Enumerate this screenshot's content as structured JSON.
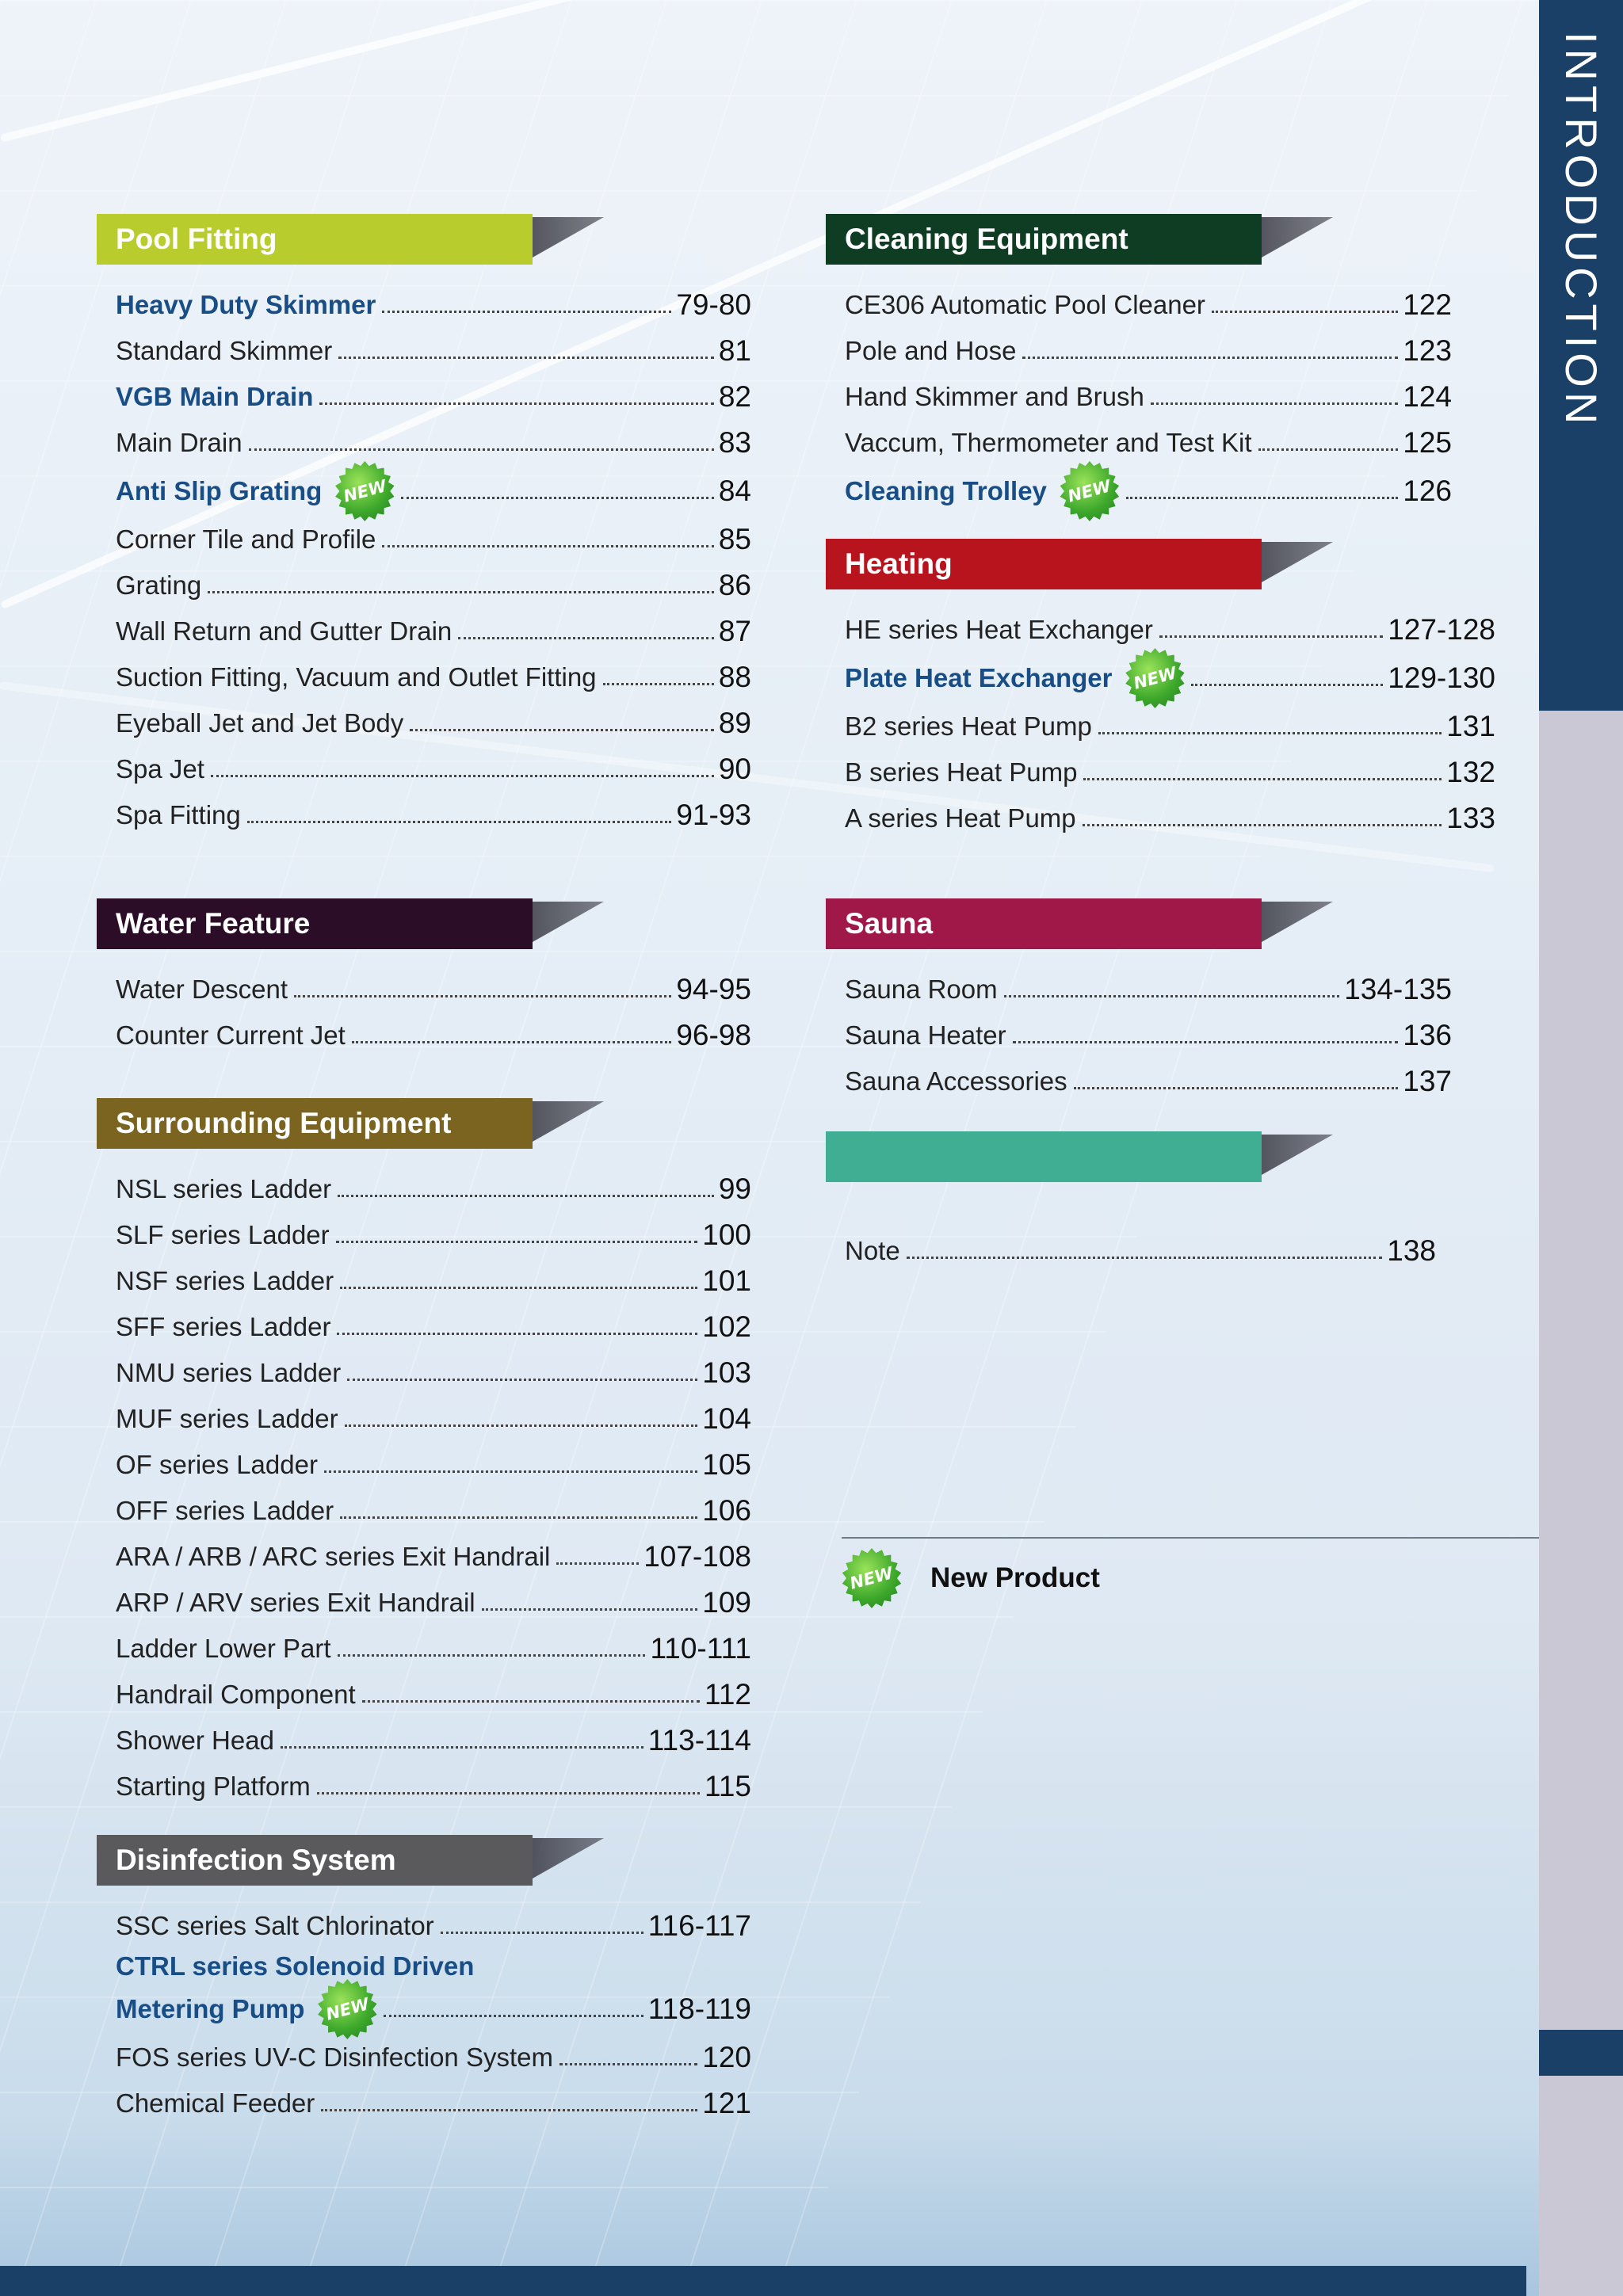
{
  "side_title": "INTRODUCTION",
  "badge_text": "NEW",
  "legend_label": "New Product",
  "sections": {
    "pool_fitting": {
      "title": "Pool Fitting",
      "color": "#b8cc2e",
      "items": [
        {
          "label": "Heavy Duty Skimmer",
          "page": "79-80",
          "highlight": true
        },
        {
          "label": "Standard Skimmer",
          "page": "81"
        },
        {
          "label": "VGB Main Drain",
          "page": "82",
          "highlight": true
        },
        {
          "label": "Main Drain",
          "page": "83"
        },
        {
          "label": "Anti Slip Grating",
          "page": "84",
          "highlight": true,
          "new": true
        },
        {
          "label": "Corner Tile and Profile",
          "page": "85"
        },
        {
          "label": "Grating",
          "page": "86"
        },
        {
          "label": "Wall Return and Gutter Drain",
          "page": "87"
        },
        {
          "label": "Suction Fitting, Vacuum and Outlet Fitting",
          "page": "88"
        },
        {
          "label": "Eyeball Jet and Jet Body",
          "page": "89"
        },
        {
          "label": "Spa Jet",
          "page": "90"
        },
        {
          "label": "Spa Fitting",
          "page": "91-93"
        }
      ]
    },
    "water_feature": {
      "title": "Water Feature",
      "color": "#2b0d28",
      "items": [
        {
          "label": "Water Descent",
          "page": "94-95"
        },
        {
          "label": "Counter Current Jet",
          "page": "96-98"
        }
      ]
    },
    "surrounding_equipment": {
      "title": "Surrounding Equipment",
      "color": "#7a6420",
      "items": [
        {
          "label": "NSL series Ladder",
          "page": "99"
        },
        {
          "label": "SLF series Ladder",
          "page": "100"
        },
        {
          "label": "NSF series Ladder",
          "page": "101"
        },
        {
          "label": "SFF series Ladder",
          "page": "102"
        },
        {
          "label": "NMU series Ladder",
          "page": "103"
        },
        {
          "label": "MUF series Ladder",
          "page": "104"
        },
        {
          "label": "OF series Ladder",
          "page": "105"
        },
        {
          "label": "OFF series Ladder",
          "page": "106"
        },
        {
          "label": "ARA / ARB / ARC series Exit Handrail",
          "page": "107-108"
        },
        {
          "label": "ARP / ARV series Exit Handrail",
          "page": "109"
        },
        {
          "label": "Ladder Lower Part",
          "page": "110-111"
        },
        {
          "label": "Handrail Component",
          "page": "112"
        },
        {
          "label": "Shower Head",
          "page": "113-114"
        },
        {
          "label": "Starting Platform",
          "page": "115"
        }
      ]
    },
    "disinfection_system": {
      "title": "Disinfection System",
      "color": "#5a5a5c",
      "items": [
        {
          "label": "SSC series Salt Chlorinator",
          "page": "116-117"
        },
        {
          "label": "CTRL series Solenoid Driven",
          "page": "",
          "highlight": true,
          "noleader": true
        },
        {
          "label": "Metering Pump",
          "page": "118-119",
          "highlight": true,
          "new": true
        },
        {
          "label": "FOS series UV-C Disinfection System",
          "page": "120"
        },
        {
          "label": "Chemical Feeder",
          "page": "121"
        }
      ]
    },
    "cleaning_equipment": {
      "title": "Cleaning Equipment",
      "color": "#0f3d23",
      "items": [
        {
          "label": "CE306 Automatic Pool Cleaner",
          "page": "122"
        },
        {
          "label": "Pole and Hose",
          "page": "123"
        },
        {
          "label": "Hand Skimmer and Brush",
          "page": "124"
        },
        {
          "label": "Vaccum, Thermometer and Test Kit",
          "page": "125"
        },
        {
          "label": "Cleaning Trolley",
          "page": "126",
          "highlight": true,
          "new": true
        }
      ]
    },
    "heating": {
      "title": "Heating",
      "color": "#b8141d",
      "items": [
        {
          "label": "HE series Heat Exchanger",
          "page": "127-128"
        },
        {
          "label": "Plate Heat Exchanger",
          "page": "129-130",
          "highlight": true,
          "new": true
        },
        {
          "label": "B2 series Heat Pump",
          "page": "131"
        },
        {
          "label": "B series Heat Pump",
          "page": "132"
        },
        {
          "label": "A series Heat Pump",
          "page": "133"
        }
      ]
    },
    "sauna": {
      "title": "Sauna",
      "color": "#a01848",
      "items": [
        {
          "label": "Sauna Room",
          "page": "134-135"
        },
        {
          "label": "Sauna Heater",
          "page": "136"
        },
        {
          "label": "Sauna Accessories",
          "page": "137"
        }
      ]
    },
    "note": {
      "title": "",
      "color": "#3fae93",
      "items": [
        {
          "label": "Note",
          "page": "138"
        }
      ]
    }
  }
}
